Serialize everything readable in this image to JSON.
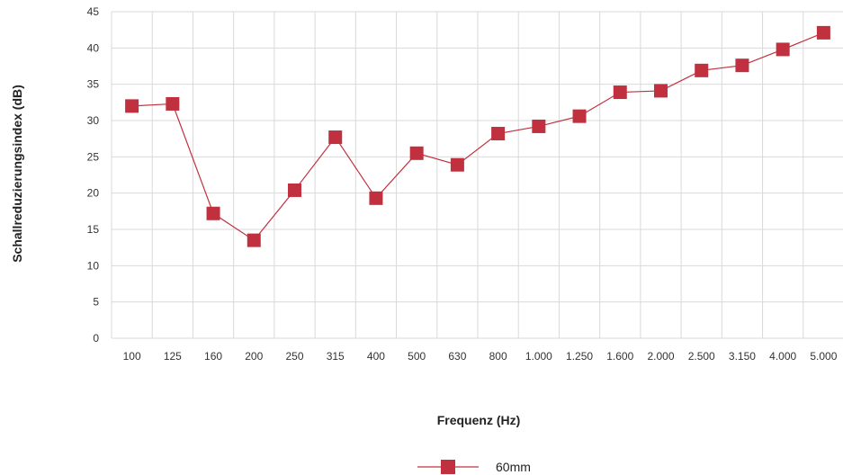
{
  "chart_data": {
    "type": "line",
    "title": "",
    "xlabel": "Frequenz (Hz)",
    "ylabel": "Schallreduzierungsindex (dB)",
    "ylim": [
      0,
      45
    ],
    "y_ticks": [
      "0",
      "5",
      "10",
      "15",
      "20",
      "25",
      "30",
      "35",
      "40",
      "45"
    ],
    "grid": true,
    "legend_position": "bottom-center",
    "categories": [
      "100",
      "125",
      "160",
      "200",
      "250",
      "315",
      "400",
      "500",
      "630",
      "800",
      "1.000",
      "1.250",
      "1.600",
      "2.000",
      "2.500",
      "3.150",
      "4.000",
      "5.000"
    ],
    "series": [
      {
        "name": "60mm",
        "color": "#c0303f",
        "marker": "square",
        "values": [
          32,
          32.3,
          17.2,
          13.5,
          20.4,
          27.7,
          19.3,
          25.5,
          23.9,
          28.2,
          29.2,
          30.6,
          33.9,
          34.1,
          36.9,
          37.6,
          39.8,
          42.1
        ]
      }
    ]
  }
}
